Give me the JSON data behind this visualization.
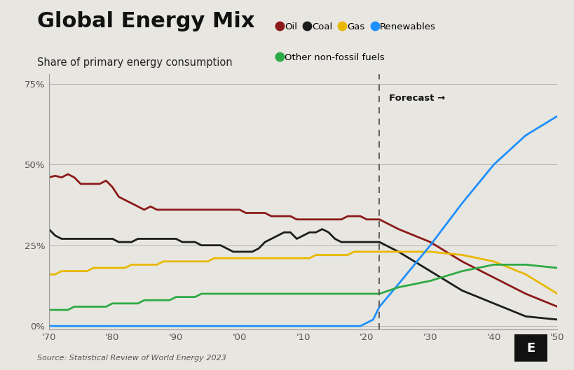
{
  "title": "Global Energy Mix",
  "subtitle": "Share of primary energy consumption",
  "source": "Source: Statistical Review of World Energy 2023",
  "background_color": "#e8e6e0",
  "plot_bg_color": "#e8e6e0",
  "forecast_year": 2022,
  "forecast_label": "Forecast →",
  "yticks": [
    0,
    25,
    50,
    75
  ],
  "ytick_labels": [
    "0%",
    "25%",
    "50%",
    "75%"
  ],
  "xlim": [
    1970,
    2050
  ],
  "ylim": [
    -1,
    78
  ],
  "xtick_years": [
    1970,
    1980,
    1990,
    2000,
    2010,
    2020,
    2030,
    2040,
    2050
  ],
  "xtick_labels": [
    "'70",
    "'80",
    "'90",
    "'00",
    "'10",
    "'20",
    "'30",
    "'40",
    "'50"
  ],
  "series": {
    "Oil": {
      "color": "#8b1a1a",
      "years": [
        1970,
        1971,
        1972,
        1973,
        1974,
        1975,
        1976,
        1977,
        1978,
        1979,
        1980,
        1981,
        1982,
        1983,
        1984,
        1985,
        1986,
        1987,
        1988,
        1989,
        1990,
        1991,
        1992,
        1993,
        1994,
        1995,
        1996,
        1997,
        1998,
        1999,
        2000,
        2001,
        2002,
        2003,
        2004,
        2005,
        2006,
        2007,
        2008,
        2009,
        2010,
        2011,
        2012,
        2013,
        2014,
        2015,
        2016,
        2017,
        2018,
        2019,
        2020,
        2021,
        2022,
        2025,
        2030,
        2035,
        2040,
        2045,
        2050
      ],
      "values": [
        46,
        46.5,
        46,
        47,
        46,
        44,
        44,
        44,
        44,
        45,
        43,
        40,
        39,
        38,
        37,
        36,
        37,
        36,
        36,
        36,
        36,
        36,
        36,
        36,
        36,
        36,
        36,
        36,
        36,
        36,
        36,
        35,
        35,
        35,
        35,
        34,
        34,
        34,
        34,
        33,
        33,
        33,
        33,
        33,
        33,
        33,
        33,
        34,
        34,
        34,
        33,
        33,
        33,
        30,
        26,
        20,
        15,
        10,
        6
      ]
    },
    "Coal": {
      "color": "#1c1c1c",
      "years": [
        1970,
        1971,
        1972,
        1973,
        1974,
        1975,
        1976,
        1977,
        1978,
        1979,
        1980,
        1981,
        1982,
        1983,
        1984,
        1985,
        1986,
        1987,
        1988,
        1989,
        1990,
        1991,
        1992,
        1993,
        1994,
        1995,
        1996,
        1997,
        1998,
        1999,
        2000,
        2001,
        2002,
        2003,
        2004,
        2005,
        2006,
        2007,
        2008,
        2009,
        2010,
        2011,
        2012,
        2013,
        2014,
        2015,
        2016,
        2017,
        2018,
        2019,
        2020,
        2021,
        2022,
        2025,
        2030,
        2035,
        2040,
        2045,
        2050
      ],
      "values": [
        30,
        28,
        27,
        27,
        27,
        27,
        27,
        27,
        27,
        27,
        27,
        26,
        26,
        26,
        27,
        27,
        27,
        27,
        27,
        27,
        27,
        26,
        26,
        26,
        25,
        25,
        25,
        25,
        24,
        23,
        23,
        23,
        23,
        24,
        26,
        27,
        28,
        29,
        29,
        27,
        28,
        29,
        29,
        30,
        29,
        27,
        26,
        26,
        26,
        26,
        26,
        26,
        26,
        23,
        17,
        11,
        7,
        3,
        2
      ]
    },
    "Gas": {
      "color": "#e8b800",
      "years": [
        1970,
        1971,
        1972,
        1973,
        1974,
        1975,
        1976,
        1977,
        1978,
        1979,
        1980,
        1981,
        1982,
        1983,
        1984,
        1985,
        1986,
        1987,
        1988,
        1989,
        1990,
        1991,
        1992,
        1993,
        1994,
        1995,
        1996,
        1997,
        1998,
        1999,
        2000,
        2001,
        2002,
        2003,
        2004,
        2005,
        2006,
        2007,
        2008,
        2009,
        2010,
        2011,
        2012,
        2013,
        2014,
        2015,
        2016,
        2017,
        2018,
        2019,
        2020,
        2021,
        2022,
        2025,
        2030,
        2035,
        2040,
        2045,
        2050
      ],
      "values": [
        16,
        16,
        17,
        17,
        17,
        17,
        17,
        18,
        18,
        18,
        18,
        18,
        18,
        19,
        19,
        19,
        19,
        19,
        20,
        20,
        20,
        20,
        20,
        20,
        20,
        20,
        21,
        21,
        21,
        21,
        21,
        21,
        21,
        21,
        21,
        21,
        21,
        21,
        21,
        21,
        21,
        21,
        22,
        22,
        22,
        22,
        22,
        22,
        23,
        23,
        23,
        23,
        23,
        23,
        23,
        22,
        20,
        16,
        10
      ]
    },
    "Renewables": {
      "color": "#1e90ff",
      "years": [
        1970,
        1971,
        1972,
        1973,
        1974,
        1975,
        1976,
        1977,
        1978,
        1979,
        1980,
        1981,
        1982,
        1983,
        1984,
        1985,
        1986,
        1987,
        1988,
        1989,
        1990,
        1991,
        1992,
        1993,
        1994,
        1995,
        1996,
        1997,
        1998,
        1999,
        2000,
        2001,
        2002,
        2003,
        2004,
        2005,
        2006,
        2007,
        2008,
        2009,
        2010,
        2011,
        2012,
        2013,
        2014,
        2015,
        2016,
        2017,
        2018,
        2019,
        2020,
        2021,
        2022,
        2025,
        2030,
        2035,
        2040,
        2045,
        2050
      ],
      "values": [
        0,
        0,
        0,
        0,
        0,
        0,
        0,
        0,
        0,
        0,
        0,
        0,
        0,
        0,
        0,
        0,
        0,
        0,
        0,
        0,
        0,
        0,
        0,
        0,
        0,
        0,
        0,
        0,
        0,
        0,
        0,
        0,
        0,
        0,
        0,
        0,
        0,
        0,
        0,
        0,
        0,
        0,
        0,
        0,
        0,
        0,
        0,
        0,
        0,
        0,
        1,
        2,
        6,
        13,
        25,
        38,
        50,
        59,
        65
      ]
    },
    "Other non-fossil fuels": {
      "color": "#2eaa44",
      "years": [
        1970,
        1971,
        1972,
        1973,
        1974,
        1975,
        1976,
        1977,
        1978,
        1979,
        1980,
        1981,
        1982,
        1983,
        1984,
        1985,
        1986,
        1987,
        1988,
        1989,
        1990,
        1991,
        1992,
        1993,
        1994,
        1995,
        1996,
        1997,
        1998,
        1999,
        2000,
        2001,
        2002,
        2003,
        2004,
        2005,
        2006,
        2007,
        2008,
        2009,
        2010,
        2011,
        2012,
        2013,
        2014,
        2015,
        2016,
        2017,
        2018,
        2019,
        2020,
        2021,
        2022,
        2025,
        2030,
        2035,
        2040,
        2045,
        2050
      ],
      "values": [
        5,
        5,
        5,
        5,
        6,
        6,
        6,
        6,
        6,
        6,
        7,
        7,
        7,
        7,
        7,
        8,
        8,
        8,
        8,
        8,
        9,
        9,
        9,
        9,
        10,
        10,
        10,
        10,
        10,
        10,
        10,
        10,
        10,
        10,
        10,
        10,
        10,
        10,
        10,
        10,
        10,
        10,
        10,
        10,
        10,
        10,
        10,
        10,
        10,
        10,
        10,
        10,
        10,
        12,
        14,
        17,
        19,
        19,
        18
      ]
    }
  }
}
